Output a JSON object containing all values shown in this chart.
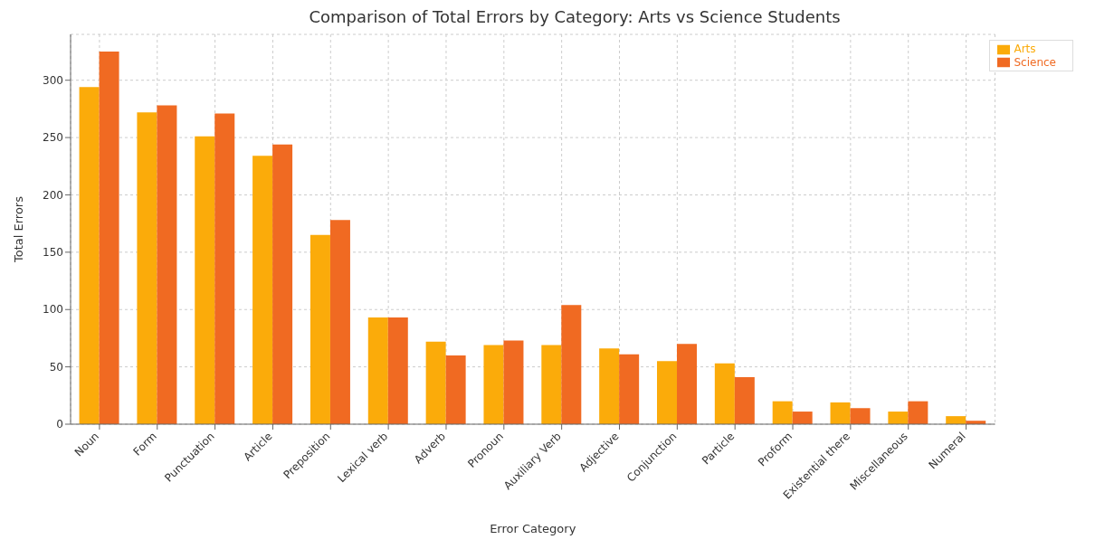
{
  "chart_data": {
    "type": "bar",
    "title": "Comparison of Total Errors by Category: Arts vs Science Students",
    "xlabel": "Error Category",
    "ylabel": "Total Errors",
    "categories": [
      "Noun",
      "Form",
      "Punctuation",
      "Article",
      "Preposition",
      "Lexical verb",
      "Adverb",
      "Pronoun",
      "Auxiliary Verb",
      "Adjective",
      "Conjunction",
      "Particle",
      "Proform",
      "Existential there",
      "Miscellaneous",
      "Numeral"
    ],
    "series": [
      {
        "name": "Arts",
        "color": "#fbab0a",
        "values": [
          294,
          272,
          251,
          234,
          165,
          93,
          72,
          69,
          69,
          66,
          55,
          53,
          20,
          19,
          11,
          7
        ]
      },
      {
        "name": "Science",
        "color": "#f06a22",
        "values": [
          325,
          278,
          271,
          244,
          178,
          93,
          60,
          73,
          104,
          61,
          70,
          41,
          11,
          14,
          20,
          3
        ]
      }
    ],
    "ylim": [
      0,
      340
    ],
    "yticks": [
      0,
      50,
      100,
      150,
      200,
      250,
      300
    ],
    "grid": true,
    "legend": "top right"
  }
}
